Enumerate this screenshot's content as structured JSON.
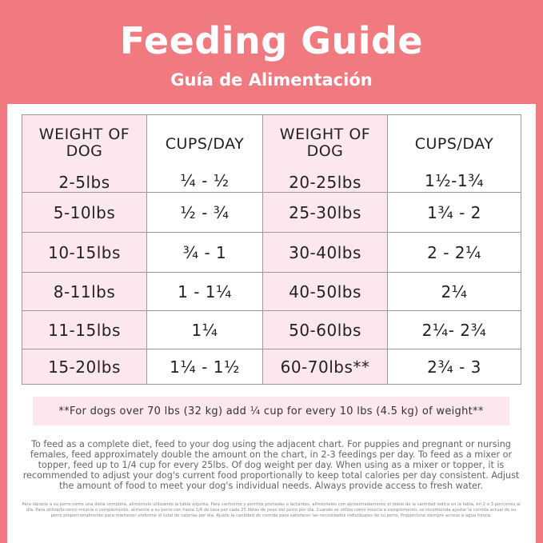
{
  "header": {
    "title": "Feeding Guide",
    "subtitle": "Guía de Alimentación"
  },
  "table": {
    "headers": [
      "WEIGHT OF DOG",
      "CUPS/DAY",
      "WEIGHT OF DOG",
      "CUPS/DAY"
    ],
    "rows": [
      [
        "2-5lbs",
        "¼ - ½",
        "20-25lbs",
        "1½-1¾"
      ],
      [
        "5-10lbs",
        "½ - ¾",
        "25-30lbs",
        "1¾ - 2"
      ],
      [
        "10-15lbs",
        "¾ - 1",
        "30-40lbs",
        "2 - 2¼"
      ],
      [
        "8-11lbs",
        "1 - 1¼",
        "40-50lbs",
        "2¼"
      ],
      [
        "11-15lbs",
        "1¼",
        "50-60lbs",
        "2¼- 2¾"
      ],
      [
        "15-20lbs",
        "1¼ - 1½",
        "60-70lbs**",
        "2¾ - 3"
      ]
    ]
  },
  "note": "**For dogs over 70 lbs (32 kg) add ¼ cup for every 10 lbs (4.5 kg) of weight**",
  "description": "To feed as a complete diet, feed to your dog using the adjacent chart. For puppies and pregnant or nursing females, feed approximately double the amount on the chart, in 2-3 feedings per day. To feed as a mixer or topper, feed up to 1/4 cup for every 25lbs. Of dog weight per day. When using as a mixer or topper, it is recommended to adjust your dog's current food proportionally to keep total calories per day consistent. Adjust the amount of food to meet your dog's individual needs. Always provide access to fresh water.",
  "description_es": "Para dárselo a su perro como una dieta completa, aliméntelo utilizando la tabla adjunta. Para cachorros y perritos preñadas o lactantes, aliméntelos con aproximadamente el doble de la cantidad indica en la tabla, en 2 o 3 porciones al día. Para utilizarlo como mezcla o complemento, alimente a su perro con hasta 1/4 de taza por cada 25 libras de peso del perro por día. Cuando se utiliza como mezcla o complemento, se recomienda ajustar la comida actual de su perro proporcionalmente para mantener uniforme el total de calorías por día. Ajuste la cantidad de comida para satisfacer las necesidades individuales de su perro. Proporcione siempre acceso a agua fresca.",
  "colors": {
    "background": "#f07a80",
    "highlight": "#fce7ee",
    "panel": "#ffffff"
  }
}
